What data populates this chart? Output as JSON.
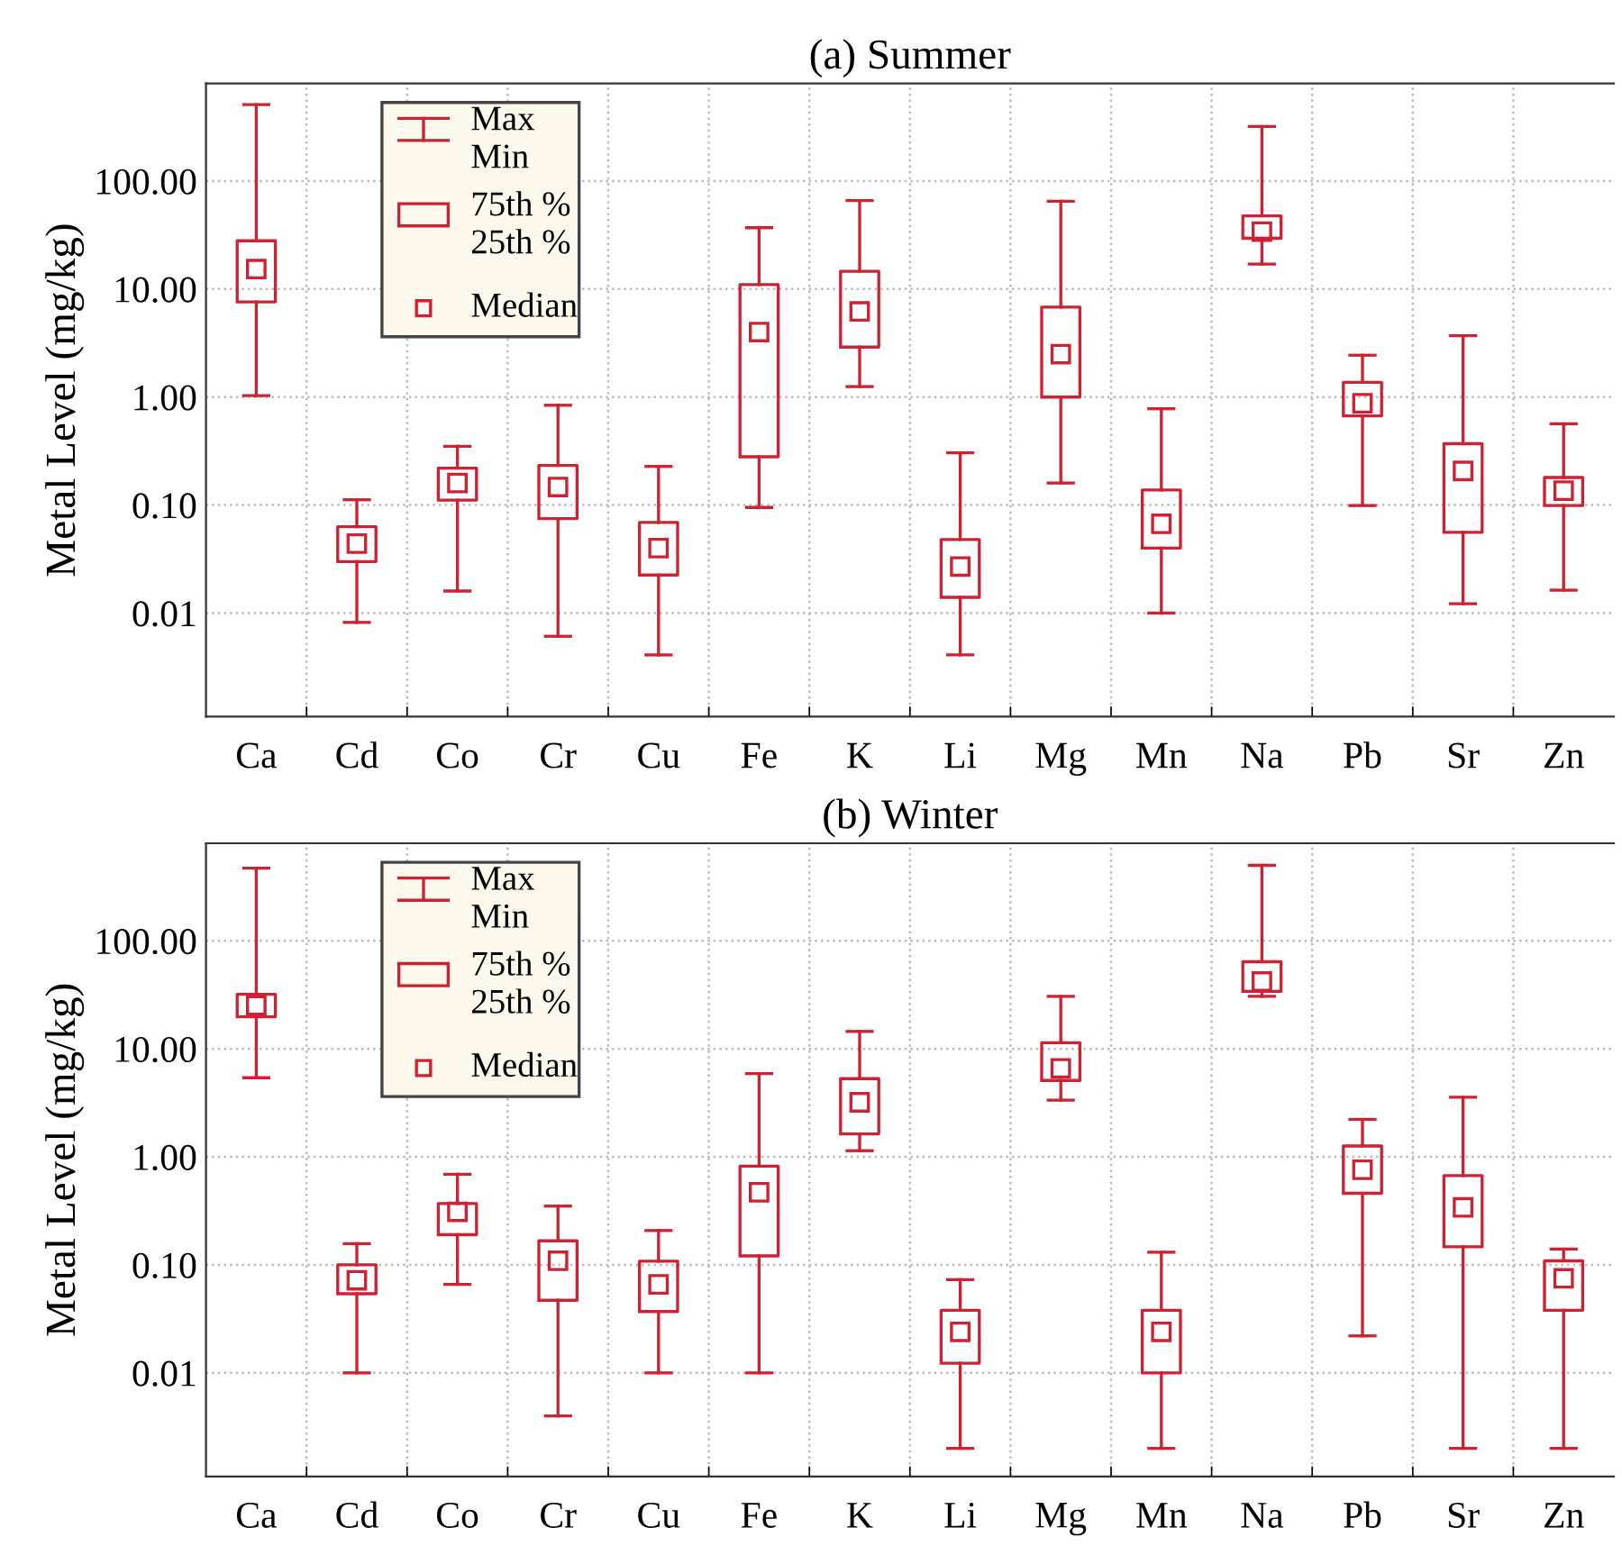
{
  "chart_data": [
    {
      "type": "box",
      "title": "(a) Summer",
      "ylabel": "Metal Level (mg/kg)",
      "log": true,
      "grid": true,
      "categories": [
        "Ca",
        "Cd",
        "Co",
        "Cr",
        "Cu",
        "Fe",
        "K",
        "Li",
        "Mg",
        "Mn",
        "Na",
        "Pb",
        "Sr",
        "Zn"
      ],
      "ylim": [
        0.0011,
        800
      ],
      "yticks": [
        {
          "value": 0.01,
          "label": "0.01"
        },
        {
          "value": 0.1,
          "label": "0.10"
        },
        {
          "value": 1,
          "label": "1.00"
        },
        {
          "value": 10,
          "label": "10.00"
        },
        {
          "value": 100,
          "label": "100.00"
        }
      ],
      "annotations": [
        "Max\nMin",
        "75th %\n25th %",
        "Median"
      ],
      "series": [
        {
          "color": "#cc2233",
          "boxes": [
            {
              "low": 1.03,
              "q1": 7.6,
              "median": 15.3,
              "q3": 28,
              "high": 510
            },
            {
              "low": 0.0082,
              "q1": 0.03,
              "median": 0.044,
              "q3": 0.063,
              "high": 0.112
            },
            {
              "low": 0.016,
              "q1": 0.111,
              "median": 0.16,
              "q3": 0.22,
              "high": 0.35
            },
            {
              "low": 0.0061,
              "q1": 0.075,
              "median": 0.147,
              "q3": 0.233,
              "high": 0.84
            },
            {
              "low": 0.0041,
              "q1": 0.0225,
              "median": 0.04,
              "q3": 0.069,
              "high": 0.228
            },
            {
              "low": 0.095,
              "q1": 0.28,
              "median": 4.0,
              "q3": 11.0,
              "high": 37
            },
            {
              "low": 1.25,
              "q1": 2.9,
              "median": 6.2,
              "q3": 14.6,
              "high": 66
            },
            {
              "low": 0.0041,
              "q1": 0.014,
              "median": 0.027,
              "q3": 0.048,
              "high": 0.305
            },
            {
              "low": 0.16,
              "q1": 1.0,
              "median": 2.5,
              "q3": 6.8,
              "high": 65
            },
            {
              "low": 0.01,
              "q1": 0.04,
              "median": 0.067,
              "q3": 0.138,
              "high": 0.78
            },
            {
              "low": 17,
              "q1": 29.5,
              "median": 34,
              "q3": 47.5,
              "high": 320
            },
            {
              "low": 0.099,
              "q1": 0.67,
              "median": 0.875,
              "q3": 1.37,
              "high": 2.44
            },
            {
              "low": 0.0122,
              "q1": 0.056,
              "median": 0.207,
              "q3": 0.37,
              "high": 3.7
            },
            {
              "low": 0.0163,
              "q1": 0.099,
              "median": 0.136,
              "q3": 0.18,
              "high": 0.565
            }
          ]
        }
      ]
    },
    {
      "type": "box",
      "title": "(b) Winter",
      "ylabel": "Metal Level (mg/kg)",
      "log": true,
      "grid": true,
      "categories": [
        "Ca",
        "Cd",
        "Co",
        "Cr",
        "Cu",
        "Fe",
        "K",
        "Li",
        "Mg",
        "Mn",
        "Na",
        "Pb",
        "Sr",
        "Zn"
      ],
      "ylim": [
        0.0011,
        800
      ],
      "yticks": [
        {
          "value": 0.01,
          "label": "0.01"
        },
        {
          "value": 0.1,
          "label": "0.10"
        },
        {
          "value": 1,
          "label": "1.00"
        },
        {
          "value": 10,
          "label": "10.00"
        },
        {
          "value": 100,
          "label": "100.00"
        }
      ],
      "annotations": [
        "Max\nMin",
        "75th %\n25th %",
        "Median"
      ],
      "series": [
        {
          "color": "#cc2233",
          "boxes": [
            {
              "low": 5.4,
              "q1": 19.8,
              "median": 25.2,
              "q3": 32,
              "high": 470
            },
            {
              "low": 0.01,
              "q1": 0.054,
              "median": 0.072,
              "q3": 0.1,
              "high": 0.157
            },
            {
              "low": 0.066,
              "q1": 0.19,
              "median": 0.31,
              "q3": 0.37,
              "high": 0.69
            },
            {
              "low": 0.004,
              "q1": 0.047,
              "median": 0.109,
              "q3": 0.167,
              "high": 0.35
            },
            {
              "low": 0.01,
              "q1": 0.037,
              "median": 0.066,
              "q3": 0.108,
              "high": 0.208
            },
            {
              "low": 0.01,
              "q1": 0.121,
              "median": 0.47,
              "q3": 0.82,
              "high": 5.9
            },
            {
              "low": 1.14,
              "q1": 1.63,
              "median": 3.2,
              "q3": 5.3,
              "high": 14.5
            },
            {
              "low": 0.002,
              "q1": 0.0123,
              "median": 0.024,
              "q3": 0.038,
              "high": 0.073
            },
            {
              "low": 3.35,
              "q1": 5.1,
              "median": 6.6,
              "q3": 11.4,
              "high": 30.6
            },
            {
              "low": 0.002,
              "q1": 0.01,
              "median": 0.024,
              "q3": 0.038,
              "high": 0.131
            },
            {
              "low": 30.6,
              "q1": 34,
              "median": 42,
              "q3": 64,
              "high": 500
            },
            {
              "low": 0.022,
              "q1": 0.46,
              "median": 0.76,
              "q3": 1.26,
              "high": 2.22
            },
            {
              "low": 0.002,
              "q1": 0.147,
              "median": 0.34,
              "q3": 0.67,
              "high": 3.57
            },
            {
              "low": 0.002,
              "q1": 0.038,
              "median": 0.075,
              "q3": 0.109,
              "high": 0.14
            }
          ]
        }
      ]
    }
  ]
}
